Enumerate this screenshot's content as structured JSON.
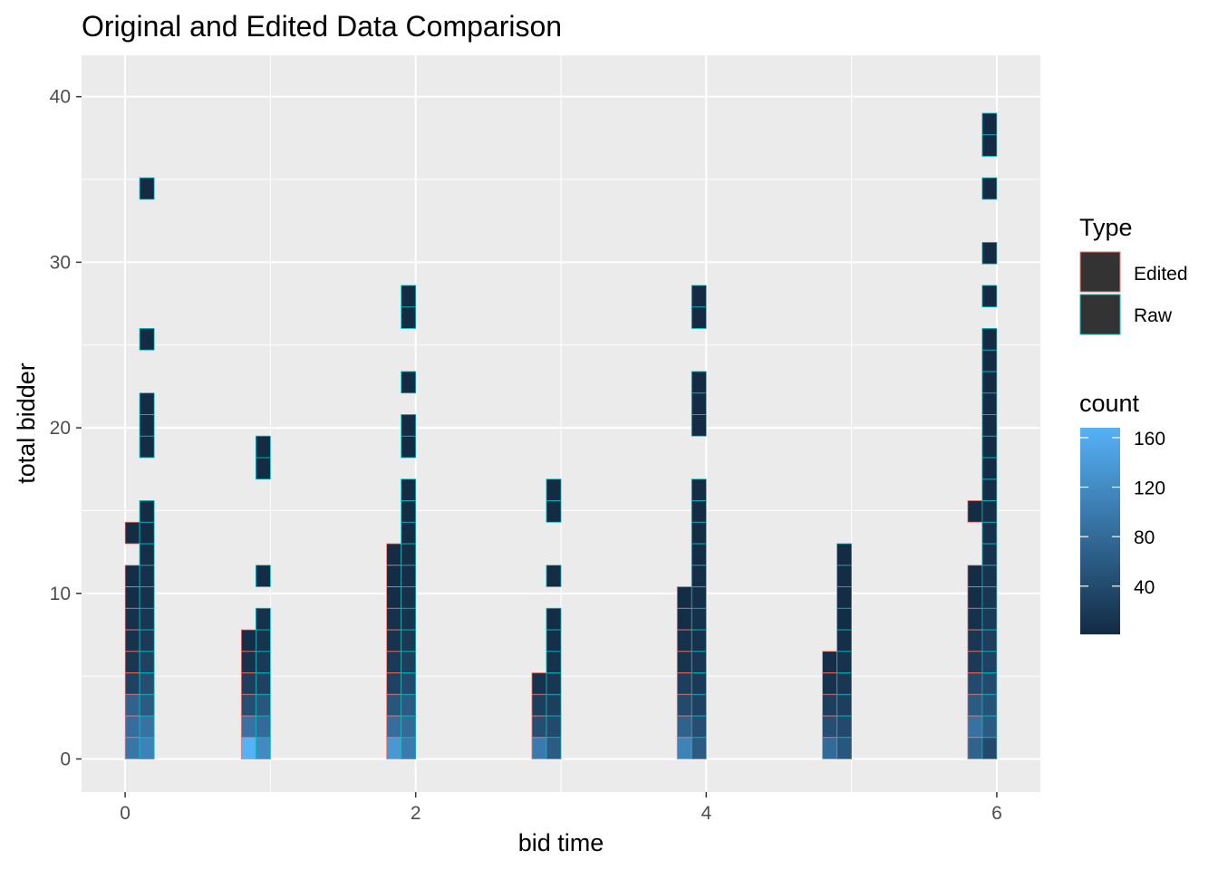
{
  "chart_data": {
    "type": "heatmap",
    "title": "Original and Edited Data Comparison",
    "xlabel": "bid time",
    "ylabel": "total bidder",
    "xlim": [
      -0.3,
      6.3
    ],
    "ylim": [
      -2,
      42.5
    ],
    "x_ticks": [
      0,
      2,
      4,
      6
    ],
    "x_tick_labels": [
      "0",
      "2",
      "4",
      "6"
    ],
    "y_ticks": [
      0,
      10,
      20,
      30,
      40
    ],
    "y_tick_labels": [
      "0",
      "10",
      "20",
      "30",
      "40"
    ],
    "x_minor": [
      1,
      3,
      5
    ],
    "y_minor": [
      5,
      15,
      25,
      35
    ],
    "grid": true,
    "bin_width": 0.1,
    "bin_height": 1.3,
    "legend_placement": "right",
    "type_legend": {
      "title": "Type",
      "entries": [
        {
          "label": "Edited",
          "outline": "#F8766D"
        },
        {
          "label": "Raw",
          "outline": "#00BFC4"
        }
      ]
    },
    "count_legend": {
      "title": "count",
      "ticks": [
        40,
        80,
        120,
        160
      ],
      "tick_labels": [
        "40",
        "80",
        "120",
        "160"
      ],
      "min": 1,
      "max": 168,
      "color_low": "#132B43",
      "color_high": "#56B1F7"
    },
    "series": [
      {
        "name": "Edited",
        "outline": "#F8766D",
        "columns": [
          {
            "x0": 0.0,
            "counts": [
              95,
              85,
              70,
              30,
              15,
              10,
              8,
              5,
              5,
              0,
              3
            ]
          },
          {
            "x0": 0.8,
            "counts": [
              168,
              90,
              45,
              25,
              10,
              5
            ]
          },
          {
            "x0": 1.8,
            "counts": [
              135,
              85,
              55,
              30,
              20,
              12,
              8,
              5,
              4,
              3
            ]
          },
          {
            "x0": 2.8,
            "counts": [
              100,
              45,
              25,
              10
            ]
          },
          {
            "x0": 3.8,
            "counts": [
              110,
              70,
              40,
              25,
              12,
              8,
              5,
              4
            ]
          },
          {
            "x0": 4.8,
            "counts": [
              80,
              45,
              25,
              10,
              5
            ]
          },
          {
            "x0": 5.8,
            "counts": [
              70,
              90,
              60,
              40,
              20,
              15,
              8,
              5,
              4,
              0,
              0,
              3
            ]
          }
        ]
      },
      {
        "name": "Raw",
        "outline": "#00BFC4",
        "columns": [
          {
            "x0": 0.1,
            "counts": [
              110,
              90,
              60,
              45,
              30,
              20,
              15,
              10,
              8,
              6,
              4,
              3,
              0,
              0,
              3,
              3,
              3,
              0,
              0,
              2,
              0,
              0,
              0,
              0,
              0,
              0,
              1
            ]
          },
          {
            "x0": 0.9,
            "counts": [
              120,
              80,
              55,
              30,
              20,
              12,
              8,
              0,
              4,
              0,
              0,
              0,
              0,
              2,
              2
            ]
          },
          {
            "x0": 1.9,
            "counts": [
              100,
              80,
              60,
              40,
              25,
              18,
              12,
              8,
              6,
              5,
              4,
              3,
              3,
              0,
              2,
              2,
              0,
              2,
              0,
              0,
              2,
              2
            ]
          },
          {
            "x0": 2.9,
            "counts": [
              60,
              40,
              25,
              15,
              10,
              6,
              4,
              0,
              3,
              0,
              0,
              2,
              2
            ]
          },
          {
            "x0": 3.9,
            "counts": [
              60,
              45,
              30,
              20,
              15,
              10,
              8,
              6,
              5,
              4,
              3,
              3,
              3,
              0,
              0,
              2,
              2,
              2,
              0,
              0,
              2,
              2
            ]
          },
          {
            "x0": 4.9,
            "counts": [
              55,
              40,
              25,
              15,
              10,
              6,
              4,
              3,
              3,
              2
            ]
          },
          {
            "x0": 5.9,
            "counts": [
              40,
              60,
              50,
              40,
              30,
              25,
              20,
              15,
              12,
              10,
              8,
              6,
              5,
              4,
              3,
              3,
              3,
              2,
              2,
              2,
              0,
              2,
              0,
              2,
              0,
              0,
              2,
              0,
              2,
              2
            ]
          }
        ]
      }
    ]
  }
}
